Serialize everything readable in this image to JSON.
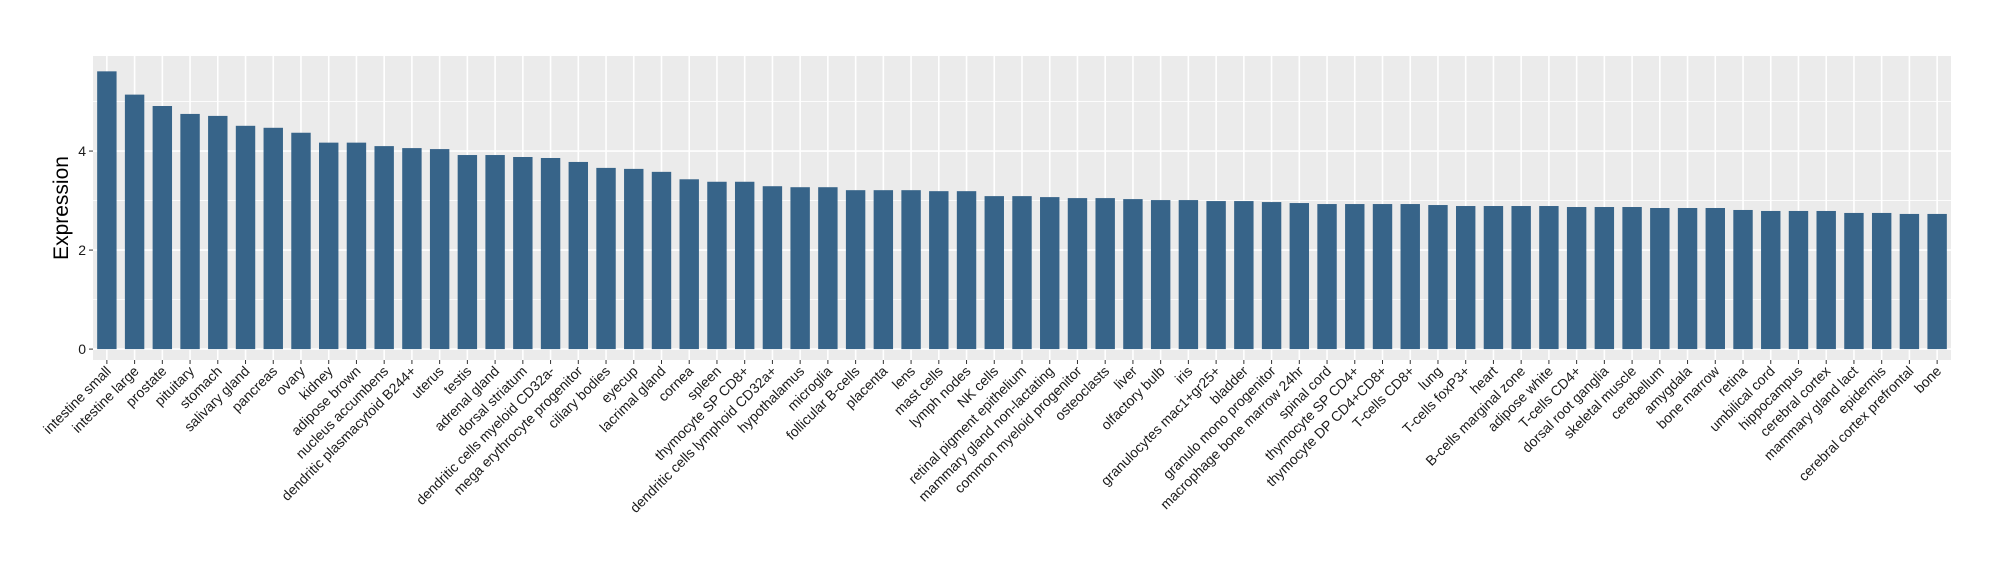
{
  "chart_data": {
    "type": "bar",
    "title": "",
    "xlabel": "",
    "ylabel": "Expression",
    "ylim": [
      -0.22,
      5.92
    ],
    "yticks": [
      0,
      2,
      4
    ],
    "grid": true,
    "bar_color": "#376489",
    "panel_color": "#ebebeb",
    "categories": [
      "intestine small",
      "intestine large",
      "prostate",
      "pituitary",
      "stomach",
      "salivary gland",
      "pancreas",
      "ovary",
      "kidney",
      "adipose brown",
      "nucleus accumbens",
      "dendritic plasmacytoid B244+",
      "uterus",
      "testis",
      "adrenal gland",
      "dorsal striatum",
      "dendritic cells myeloid CD32a-",
      "mega erythrocyte progenitor",
      "ciliary bodies",
      "eyecup",
      "lacrimal gland",
      "cornea",
      "spleen",
      "thymocyte SP CD8+",
      "dendritic cells lymphoid CD32a+",
      "hypothalamus",
      "microglia",
      "follicular B-cells",
      "placenta",
      "lens",
      "mast cells",
      "lymph nodes",
      "NK cells",
      "retinal pigment epithelium",
      "mammary gland non-lactating",
      "common myeloid progenitor",
      "osteoclasts",
      "liver",
      "olfactory bulb",
      "iris",
      "granulocytes mac1+gr25+",
      "bladder",
      "granulo mono progenitor",
      "macrophage bone marrow 24hr",
      "spinal cord",
      "thymocyte SP CD4+",
      "thymocyte DP CD4+CD8+",
      "T-cells CD8+",
      "lung",
      "T-cells foxP3+",
      "heart",
      "B-cells marginal zone",
      "adipose white",
      "T-cells CD4+",
      "dorsal root ganglia",
      "skeletal muscle",
      "cerebellum",
      "amygdala",
      "bone marrow",
      "retina",
      "umbilical cord",
      "hippocampus",
      "cerebral cortex",
      "mammary gland  lact",
      "epidermis",
      "cerebral cortex prefrontal",
      "bone"
    ],
    "values": [
      5.61,
      5.14,
      4.91,
      4.75,
      4.71,
      4.51,
      4.47,
      4.37,
      4.17,
      4.17,
      4.1,
      4.06,
      4.04,
      3.92,
      3.92,
      3.88,
      3.86,
      3.78,
      3.66,
      3.64,
      3.58,
      3.43,
      3.38,
      3.38,
      3.29,
      3.27,
      3.27,
      3.21,
      3.21,
      3.21,
      3.19,
      3.19,
      3.09,
      3.09,
      3.07,
      3.05,
      3.05,
      3.03,
      3.01,
      3.01,
      2.99,
      2.99,
      2.97,
      2.95,
      2.93,
      2.93,
      2.93,
      2.93,
      2.91,
      2.89,
      2.89,
      2.89,
      2.89,
      2.87,
      2.87,
      2.87,
      2.85,
      2.85,
      2.85,
      2.81,
      2.79,
      2.79,
      2.79,
      2.75,
      2.75,
      2.73,
      2.73
    ]
  }
}
